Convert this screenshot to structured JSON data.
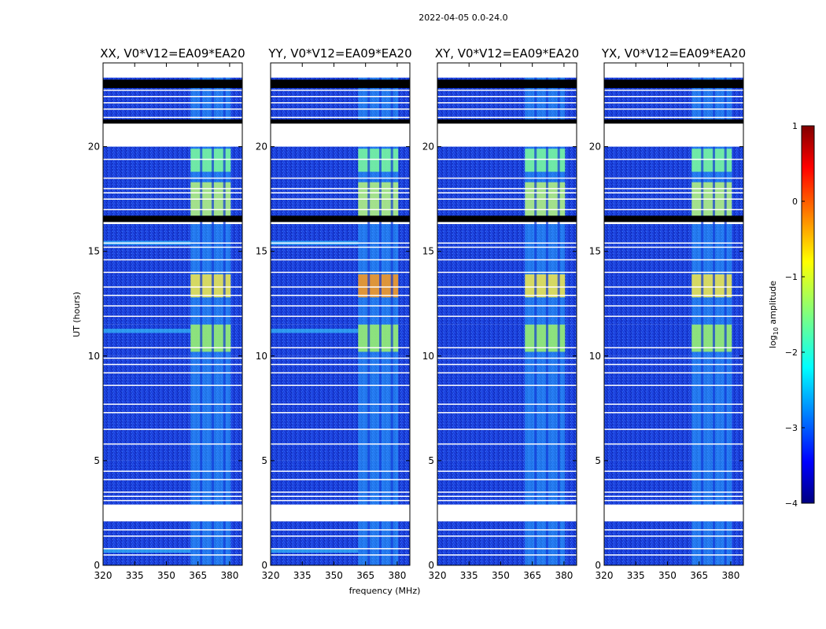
{
  "figure_title": "2022-04-05 0.0-24.0",
  "chart_data": {
    "type": "heatmap",
    "title": "2022-04-05 0.0-24.0",
    "xlabel": "frequency (MHz)",
    "ylabel": "UT (hours)",
    "xlim": [
      320,
      386
    ],
    "ylim": [
      0,
      24
    ],
    "xticks": [
      320,
      335,
      350,
      365,
      380
    ],
    "yticks": [
      0,
      5,
      10,
      15,
      20
    ],
    "panels": [
      {
        "title": "XX, V0*V12=EA09*EA20",
        "polarization": "XX"
      },
      {
        "title": "YY, V0*V12=EA09*EA20",
        "polarization": "YY"
      },
      {
        "title": "XY, V0*V12=EA09*EA20",
        "polarization": "XY"
      },
      {
        "title": "YX, V0*V12=EA09*EA20",
        "polarization": "YX"
      }
    ],
    "rfi_band_mhz": [
      361.5,
      380.5
    ],
    "flagged_gaps_hours": [
      [
        2.1,
        2.9
      ],
      [
        20.0,
        21.2
      ],
      [
        23.3,
        24.0
      ]
    ],
    "colorbar": {
      "label": "log10 amplitude",
      "label_main": "log",
      "label_sub": "10",
      "label_rest": " amplitude",
      "range": [
        -4,
        1
      ],
      "ticks": [
        "1",
        "0",
        "−1",
        "−2",
        "−3",
        "−4"
      ],
      "colormap": "jet"
    }
  }
}
